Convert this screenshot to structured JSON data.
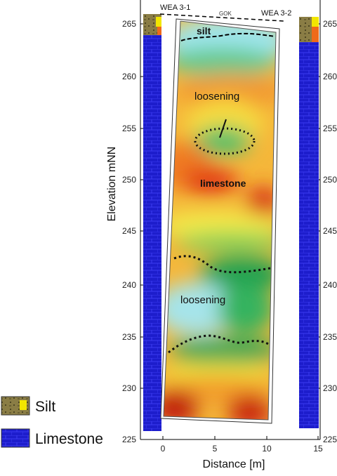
{
  "axes": {
    "y_title": "Elevation mNN",
    "x_title": "Distance [m]",
    "y_ticks": [
      "225",
      "230",
      "235",
      "240",
      "245",
      "250",
      "255",
      "260",
      "265"
    ],
    "x_ticks": [
      "0",
      "5",
      "10",
      "15"
    ]
  },
  "wells": {
    "left_label": "WEA 3-1",
    "right_label": "WEA 3-2",
    "surface_label": "GOK"
  },
  "annotations": {
    "silt": "silt",
    "loosening_upper": "loosening",
    "limestone": "limestone",
    "loosening_lower": "loosening"
  },
  "legend": {
    "silt": "Silt",
    "limestone": "Limestone"
  },
  "colors": {
    "limestone_blue": "#1d1dcc",
    "silt_brown": "#8a7d45",
    "silt_yellow": "#f2e600",
    "silt_orange": "#ef6a1a",
    "anomaly_red": "#d11f12",
    "anomaly_orange": "#f5a623",
    "anomaly_yellow": "#ffef3a",
    "anomaly_green": "#2faf55",
    "anomaly_cyan": "#9fe6ee"
  }
}
